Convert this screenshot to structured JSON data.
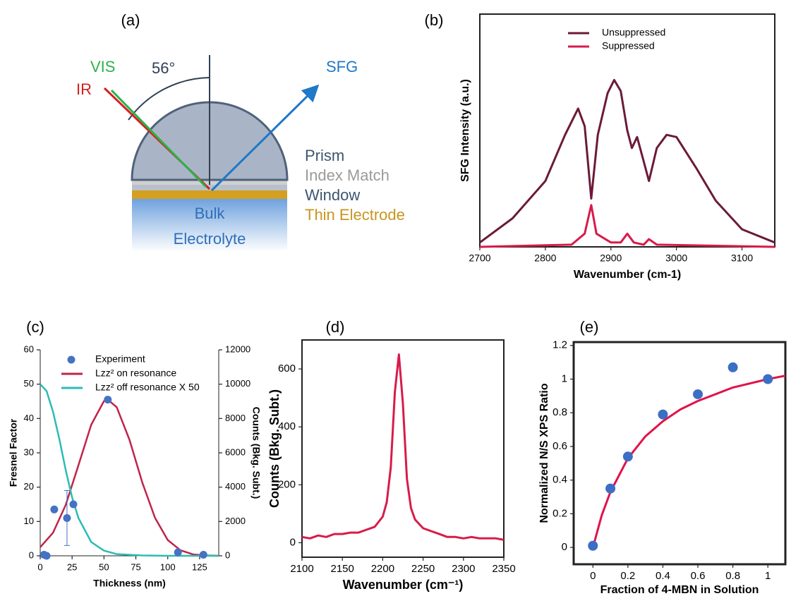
{
  "diagram": {
    "label": "(a)",
    "beams": {
      "vis": "VIS",
      "ir": "IR",
      "sfg": "SFG",
      "angle": "56°"
    },
    "layers": [
      "Prism",
      "Index Match",
      "Window",
      "Thin Electrode"
    ],
    "bulk": [
      "Bulk",
      "Electrolyte"
    ]
  },
  "chart_data": [
    {
      "type": "line",
      "label": "(b)",
      "xlabel": "Wavenumber (cm-1)",
      "ylabel": "SFG Intensity (a.u.)",
      "xlim": [
        2700,
        3150
      ],
      "xticks": [
        2700,
        2800,
        2900,
        3000,
        3100
      ],
      "ylim": [
        0,
        1.06
      ],
      "legend": "top",
      "series": [
        {
          "name": "Unsuppressed",
          "color": "#6b1a3a",
          "x": [
            2700,
            2750,
            2800,
            2830,
            2850,
            2860,
            2870,
            2880,
            2895,
            2905,
            2915,
            2925,
            2932,
            2940,
            2950,
            2958,
            2970,
            2985,
            3000,
            3030,
            3060,
            3100,
            3150
          ],
          "values": [
            0.02,
            0.13,
            0.3,
            0.51,
            0.63,
            0.55,
            0.22,
            0.51,
            0.7,
            0.76,
            0.71,
            0.53,
            0.45,
            0.5,
            0.39,
            0.3,
            0.45,
            0.51,
            0.5,
            0.36,
            0.21,
            0.08,
            0.02
          ]
        },
        {
          "name": "Suppressed",
          "color": "#d81b4a",
          "x": [
            2700,
            2840,
            2860,
            2870,
            2878,
            2900,
            2915,
            2925,
            2935,
            2950,
            2958,
            2970,
            3150
          ],
          "values": [
            0,
            0.01,
            0.06,
            0.19,
            0.06,
            0.02,
            0.02,
            0.06,
            0.02,
            0.01,
            0.035,
            0.01,
            0
          ]
        }
      ]
    },
    {
      "type": "line",
      "label": "(c)",
      "xlabel": "Thickness (nm)",
      "ylabel": "Fresnel Factor",
      "y2label": "Counts (Bkg. Subt.)",
      "xlim": [
        0,
        140
      ],
      "xticks": [
        0,
        25,
        50,
        75,
        100,
        125
      ],
      "ylim": [
        0,
        60
      ],
      "yticks": [
        0,
        10,
        20,
        30,
        40,
        50,
        60
      ],
      "y2lim": [
        0,
        12000
      ],
      "y2ticks": [
        0,
        2000,
        4000,
        6000,
        8000,
        10000,
        12000
      ],
      "legend": "upper left",
      "series": [
        {
          "name": "Experiment",
          "kind": "scatter",
          "axis": "y2",
          "color": "#4472c4",
          "x": [
            3,
            5,
            11,
            21,
            26,
            53,
            108,
            128
          ],
          "values": [
            60,
            0,
            2700,
            2200,
            3000,
            9100,
            200,
            60
          ],
          "errors": [
            null,
            null,
            null,
            1600,
            null,
            null,
            null,
            null
          ]
        },
        {
          "name": "Lzz² on resonance",
          "color": "#c0244a",
          "x": [
            0,
            10,
            20,
            30,
            40,
            50,
            53,
            60,
            70,
            80,
            90,
            100,
            110,
            120,
            130,
            140
          ],
          "values": [
            2.5,
            6.7,
            14.8,
            26.4,
            38.2,
            45.1,
            45.5,
            43.3,
            33.8,
            21.4,
            11.1,
            4.6,
            1.6,
            0.4,
            0.1,
            0
          ]
        },
        {
          "name": "Lzz² off resonance X 50",
          "color": "#2bbcb4",
          "x": [
            0,
            5,
            10,
            15,
            20,
            25,
            30,
            40,
            50,
            60,
            80,
            100,
            140
          ],
          "values": [
            50,
            48,
            42,
            34,
            25,
            17,
            11,
            4,
            1.5,
            0.5,
            0.1,
            0,
            0
          ]
        }
      ]
    },
    {
      "type": "line",
      "label": "(d)",
      "xlabel": "Wavenumber (cm⁻¹)",
      "ylabel": "Counts (Bkg. Subt.)",
      "xlim": [
        2100,
        2350
      ],
      "xticks": [
        2100,
        2150,
        2200,
        2250,
        2300,
        2350
      ],
      "ylim": [
        -50,
        700
      ],
      "yticks": [
        0,
        200,
        400,
        600
      ],
      "series": [
        {
          "color": "#d81b4a",
          "x": [
            2100,
            2110,
            2120,
            2130,
            2140,
            2150,
            2160,
            2170,
            2180,
            2190,
            2200,
            2205,
            2210,
            2215,
            2220,
            2225,
            2230,
            2235,
            2240,
            2250,
            2260,
            2270,
            2280,
            2290,
            2300,
            2310,
            2320,
            2330,
            2340,
            2350
          ],
          "values": [
            20,
            15,
            25,
            20,
            30,
            30,
            35,
            35,
            45,
            55,
            90,
            140,
            260,
            520,
            650,
            480,
            220,
            120,
            80,
            50,
            40,
            30,
            20,
            20,
            15,
            20,
            15,
            15,
            15,
            10
          ]
        }
      ]
    },
    {
      "type": "scatter",
      "label": "(e)",
      "xlabel": "Fraction of 4-MBN in Solution",
      "ylabel": "Normalized N/S XPS Ratio",
      "xlim": [
        -0.11,
        1.1
      ],
      "xticks": [
        0,
        0.2,
        0.4,
        0.6,
        0.8,
        1
      ],
      "ylim": [
        -0.1,
        1.22
      ],
      "yticks": [
        0,
        0.2,
        0.4,
        0.6,
        0.8,
        1,
        1.2
      ],
      "series": [
        {
          "kind": "line",
          "color": "#e0134a",
          "x": [
            0,
            0.05,
            0.1,
            0.2,
            0.3,
            0.4,
            0.5,
            0.6,
            0.8,
            1,
            1.1
          ],
          "values": [
            0,
            0.19,
            0.33,
            0.53,
            0.66,
            0.75,
            0.82,
            0.87,
            0.95,
            1.0,
            1.02
          ]
        },
        {
          "kind": "scatter",
          "color": "#3a6fc4",
          "x": [
            0,
            0.1,
            0.2,
            0.4,
            0.6,
            0.8,
            1
          ],
          "values": [
            0.01,
            0.35,
            0.54,
            0.79,
            0.91,
            1.07,
            1.0
          ]
        }
      ]
    }
  ]
}
